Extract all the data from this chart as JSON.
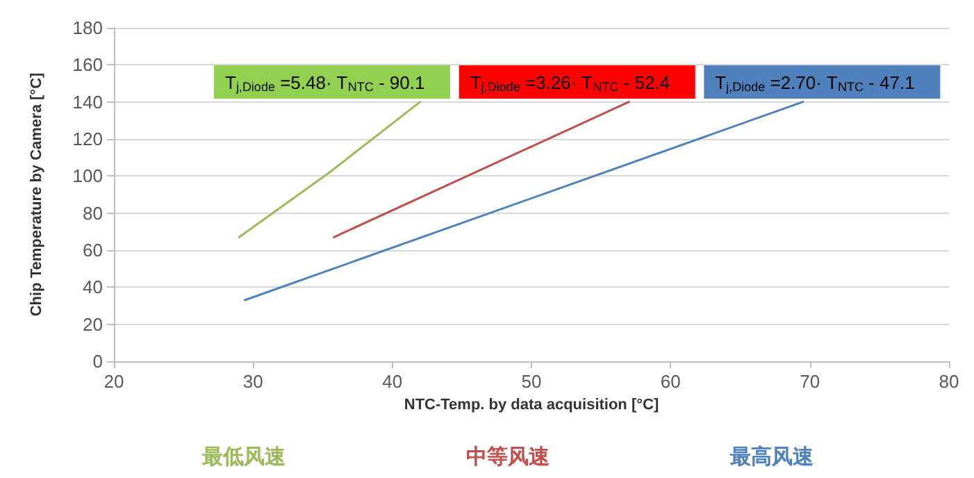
{
  "chart_data": {
    "type": "line",
    "xlabel": "NTC-Temp. by data acquisition [°C]",
    "ylabel": "Chip Temperature by Camera [°C]",
    "xlim": [
      20,
      80
    ],
    "xticks": [
      20,
      30,
      40,
      50,
      60,
      70,
      80
    ],
    "ylim": [
      0,
      180
    ],
    "yticks": [
      0,
      20,
      40,
      60,
      80,
      100,
      120,
      140,
      160,
      180
    ],
    "grid": "y",
    "legend": "bottom",
    "marker": "none",
    "line_style": "solid",
    "series": [
      {
        "name": "最低风速",
        "color": "#9bbb59",
        "x": [
          29,
          35.5,
          42
        ],
        "values": [
          67,
          102,
          140
        ]
      },
      {
        "name": "中等风速",
        "color": "#c0504d",
        "x": [
          35.8,
          57
        ],
        "values": [
          67,
          140
        ]
      },
      {
        "name": "最高风速",
        "color": "#4f81bd",
        "x": [
          29.4,
          69.5
        ],
        "values": [
          33,
          140
        ]
      }
    ],
    "annotations": [
      "T$_{j,Diode}$ =5.48· T$_{NTC}$ - 90.1",
      "T$_{j,Diode}$ =3.26· T$_{NTC}$ - 52.4",
      "T$_{j,Diode}$ =2.70· T$_{NTC}$ - 47.1"
    ]
  }
}
